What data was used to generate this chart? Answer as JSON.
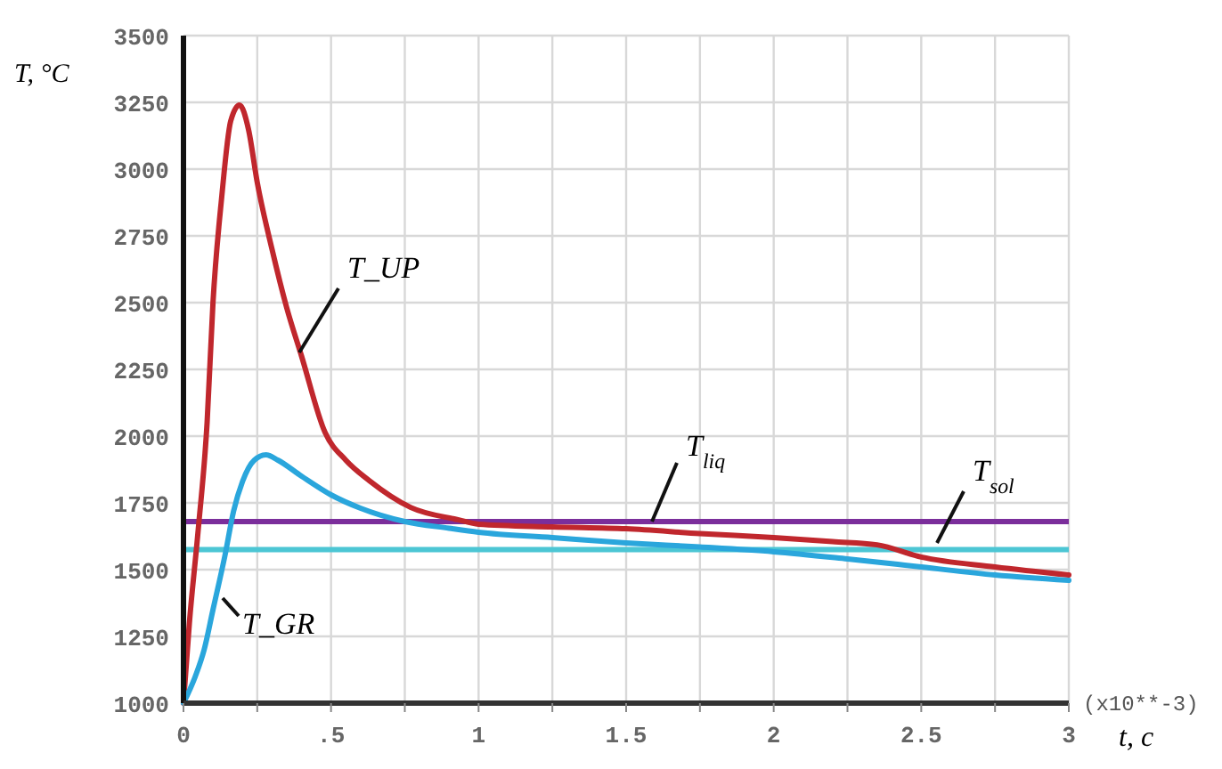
{
  "chart_data": {
    "type": "line",
    "xlabel": "t, c",
    "ylabel": "T, °C",
    "annotations": [
      "(x10**-3)"
    ],
    "xlim": [
      0,
      3
    ],
    "ylim": [
      1000,
      3500
    ],
    "xticks": [
      0,
      {
        "value": 0.25,
        "label": null
      },
      {
        "value": 0.5,
        "label": ".5"
      },
      {
        "value": 0.75,
        "label": null
      },
      1,
      {
        "value": 1.25,
        "label": null
      },
      1.5,
      {
        "value": 1.75,
        "label": null
      },
      2,
      {
        "value": 2.25,
        "label": null
      },
      2.5,
      {
        "value": 2.75,
        "label": null
      },
      3
    ],
    "yticks": [
      1000,
      1250,
      1500,
      1750,
      2000,
      2250,
      2500,
      2750,
      3000,
      3250,
      3500
    ],
    "grid": true,
    "line_style": "solid",
    "marker": "none",
    "series": [
      {
        "name": "T_UP",
        "color": "#c0272d",
        "x": [
          0,
          0.02,
          0.05,
          0.08,
          0.1,
          0.13,
          0.16,
          0.19,
          0.22,
          0.25,
          0.3,
          0.35,
          0.4,
          0.48,
          0.55,
          0.63,
          0.77,
          0.93,
          1,
          1.25,
          1.5,
          1.75,
          2,
          2.2,
          2.35,
          2.5,
          2.75,
          3
        ],
        "values": [
          1000,
          1300,
          1650,
          2050,
          2500,
          2900,
          3180,
          3240,
          3150,
          2950,
          2700,
          2480,
          2300,
          2013,
          1910,
          1833,
          1733,
          1687,
          1670,
          1660,
          1653,
          1635,
          1620,
          1605,
          1593,
          1547,
          1510,
          1480
        ]
      },
      {
        "name": "T_GR",
        "color": "#2aa6dc",
        "x": [
          0,
          0.04,
          0.07,
          0.1,
          0.14,
          0.17,
          0.2,
          0.24,
          0.28,
          0.32,
          0.4,
          0.5,
          0.6,
          0.75,
          0.9,
          1,
          1.25,
          1.5,
          1.75,
          2,
          2.25,
          2.5,
          2.75,
          3
        ],
        "values": [
          1000,
          1100,
          1200,
          1350,
          1550,
          1720,
          1830,
          1910,
          1930,
          1910,
          1850,
          1780,
          1730,
          1680,
          1655,
          1640,
          1620,
          1600,
          1585,
          1567,
          1540,
          1510,
          1480,
          1460
        ]
      }
    ],
    "ref_lines": [
      {
        "axis": "y",
        "value": 1680,
        "label": "T$_{liq}$",
        "color": "#7b2e9b"
      },
      {
        "axis": "y",
        "value": 1575,
        "label": "T$_{sol}$",
        "color": "#4cc6d4"
      }
    ]
  }
}
